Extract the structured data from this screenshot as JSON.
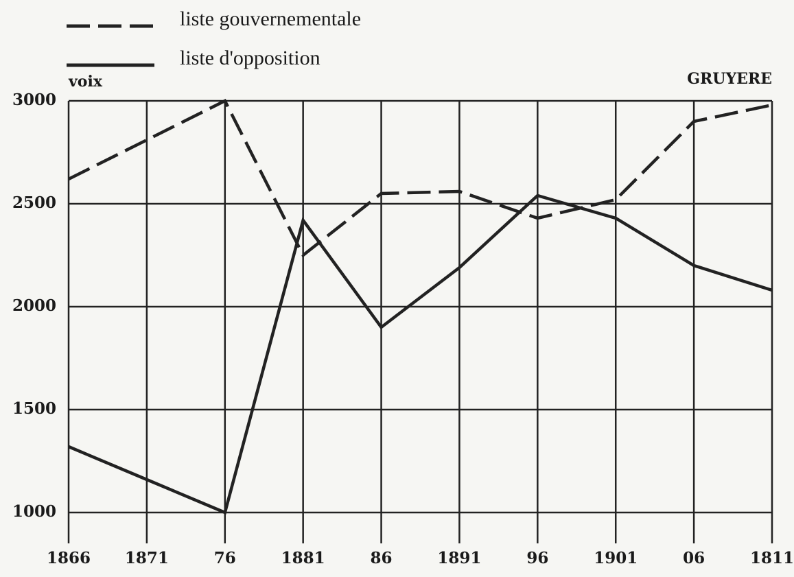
{
  "chart_data": {
    "type": "line",
    "title": "GRUYERE",
    "y_label": "voix",
    "categories": [
      "1866",
      "1871",
      "76",
      "1881",
      "86",
      "1891",
      "96",
      "1901",
      "06",
      "1811"
    ],
    "series": [
      {
        "name": "liste gouvernementale",
        "color": "#222222",
        "style": "dashed",
        "values": [
          2620,
          2810,
          3000,
          2250,
          2550,
          2560,
          2430,
          2520,
          2900,
          2980
        ]
      },
      {
        "name": "liste d'opposition",
        "color": "#222222",
        "style": "solid",
        "values": [
          1320,
          1160,
          1000,
          2420,
          1900,
          2190,
          2540,
          2430,
          2200,
          2080
        ]
      }
    ],
    "ylim": [
      850,
      3000
    ],
    "yticks": [
      1000,
      1500,
      2000,
      2500,
      3000
    ],
    "grid": true
  }
}
